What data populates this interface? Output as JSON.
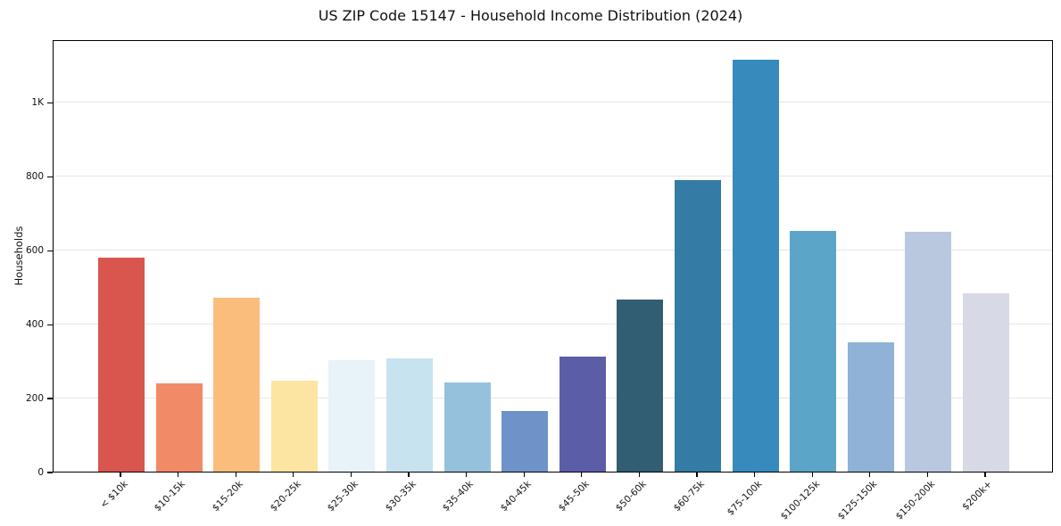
{
  "chart_data": {
    "type": "bar",
    "title": "US ZIP Code 15147 - Household Income Distribution (2024)",
    "xlabel": "",
    "ylabel": "Households",
    "categories": [
      "< $10k",
      "$10-15k",
      "$15-20k",
      "$20-25k",
      "$25-30k",
      "$30-35k",
      "$35-40k",
      "$40-45k",
      "$45-50k",
      "$50-60k",
      "$60-75k",
      "$75-100k",
      "$100-125k",
      "$125-150k",
      "$150-200k",
      "$200k+"
    ],
    "values": [
      578,
      238,
      470,
      247,
      301,
      306,
      242,
      163,
      312,
      465,
      790,
      1115,
      652,
      350,
      649,
      482
    ],
    "bar_colors": [
      "#d9564e",
      "#f18a66",
      "#fbbd7c",
      "#fce4a2",
      "#e7f3f8",
      "#c6e3ef",
      "#95c1dc",
      "#6e93c9",
      "#5b5ea6",
      "#315e72",
      "#347ca5",
      "#368abc",
      "#5ba6c8",
      "#8fb2d6",
      "#b9c8de",
      "#d8d9e6"
    ],
    "ylim": [
      0,
      1170
    ],
    "yticks": [
      {
        "value": 0,
        "label": "0"
      },
      {
        "value": 200,
        "label": "200"
      },
      {
        "value": 400,
        "label": "400"
      },
      {
        "value": 600,
        "label": "600"
      },
      {
        "value": 800,
        "label": "800"
      },
      {
        "value": 1000,
        "label": "1K"
      }
    ],
    "grid": "horizontal",
    "gridline_color": "#e7e7e7",
    "axis_color": "#000000",
    "text_color": "#111111",
    "background_color": "#ffffff",
    "legend": "none"
  }
}
